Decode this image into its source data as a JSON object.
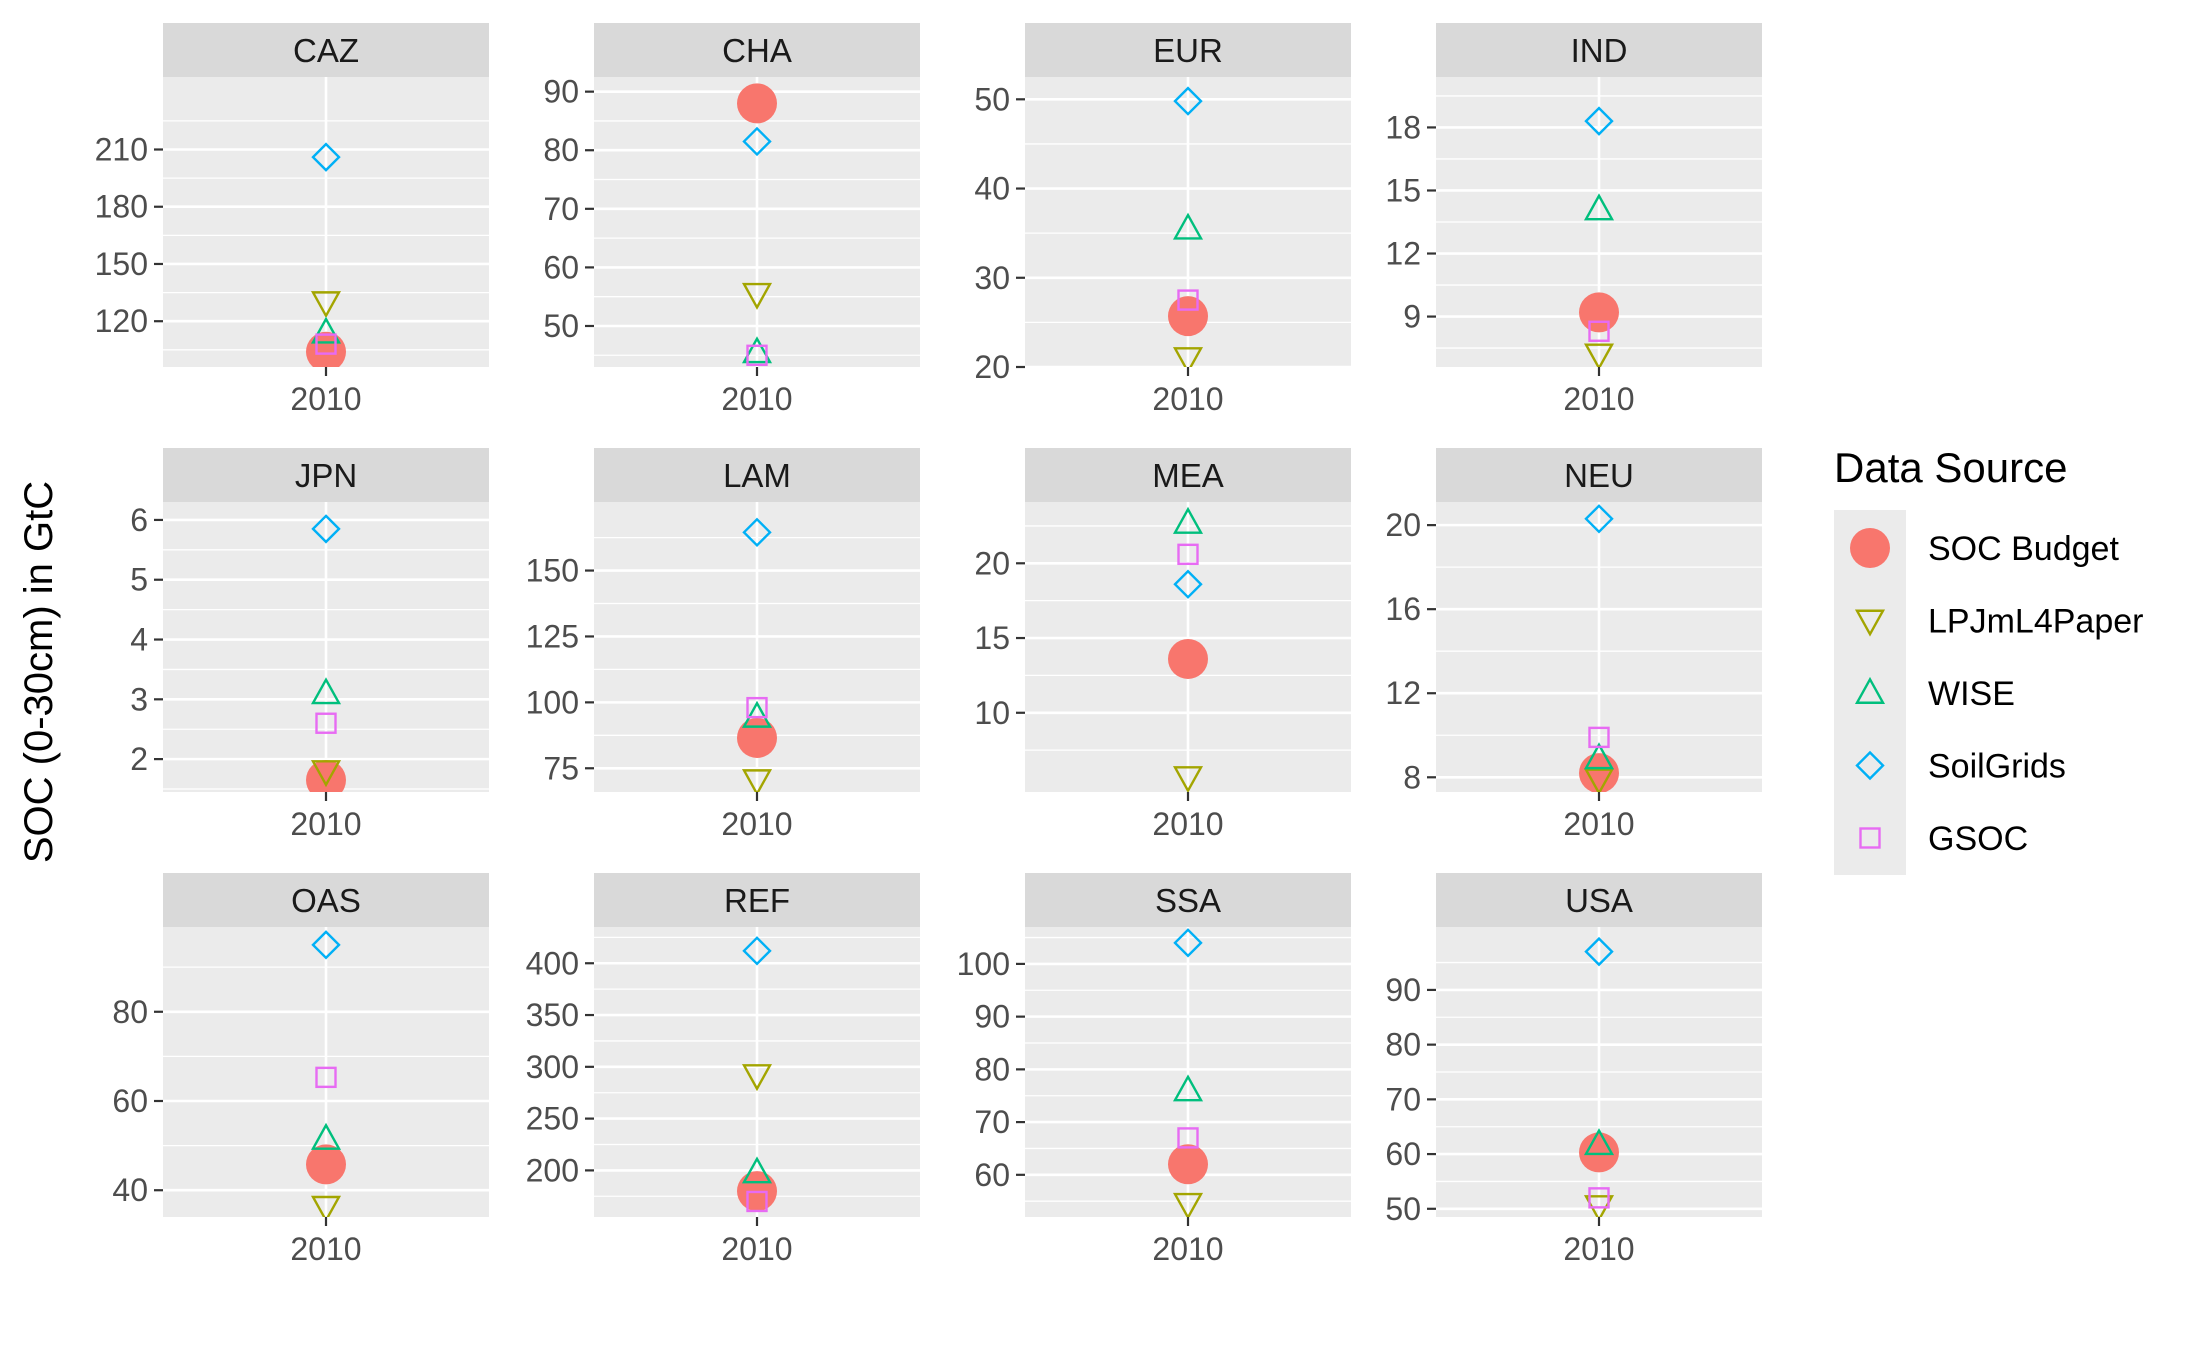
{
  "figure": {
    "ylabel": "SOC (0-30cm) in GtC",
    "legend_title": "Data Source",
    "legend_position": "right"
  },
  "chart_data": {
    "type": "scatter",
    "x_category": "2010",
    "series": [
      {
        "name": "SOC Budget",
        "shape": "filled-circle",
        "color": "#F8766D"
      },
      {
        "name": "LPJmL4Paper",
        "shape": "open-triangle-down",
        "color": "#A3A500"
      },
      {
        "name": "WISE",
        "shape": "open-triangle-up",
        "color": "#00BF7D"
      },
      {
        "name": "SoilGrids",
        "shape": "open-diamond",
        "color": "#00B0F6"
      },
      {
        "name": "GSOC",
        "shape": "open-square",
        "color": "#E76BF3"
      }
    ],
    "panels": [
      {
        "region": "CAZ",
        "ylim": [
          96,
          248
        ],
        "yticks": [
          "120",
          "150",
          "180",
          "210"
        ],
        "values": {
          "SOC Budget": 104,
          "LPJmL4Paper": 130,
          "WISE": 114,
          "SoilGrids": 206,
          "GSOC": 108
        }
      },
      {
        "region": "CHA",
        "ylim": [
          43,
          92.5
        ],
        "yticks": [
          "50",
          "60",
          "70",
          "80",
          "90"
        ],
        "values": {
          "SOC Budget": 88,
          "LPJmL4Paper": 55.5,
          "WISE": 45.5,
          "SoilGrids": 81.5,
          "GSOC": 45
        }
      },
      {
        "region": "EUR",
        "ylim": [
          20,
          52.5
        ],
        "yticks": [
          "20",
          "30",
          "40",
          "50"
        ],
        "values": {
          "SOC Budget": 25.7,
          "LPJmL4Paper": 21,
          "WISE": 35.5,
          "SoilGrids": 49.8,
          "GSOC": 27.5
        }
      },
      {
        "region": "IND",
        "ylim": [
          6.6,
          20.4
        ],
        "yticks": [
          "9",
          "12",
          "15",
          "18"
        ],
        "values": {
          "SOC Budget": 9.2,
          "LPJmL4Paper": 7.2,
          "WISE": 14.1,
          "SoilGrids": 18.3,
          "GSOC": 8.3
        }
      },
      {
        "region": "JPN",
        "ylim": [
          1.45,
          6.3
        ],
        "yticks": [
          "2",
          "3",
          "4",
          "5",
          "6"
        ],
        "values": {
          "SOC Budget": 1.65,
          "LPJmL4Paper": 1.8,
          "WISE": 3.1,
          "SoilGrids": 5.85,
          "GSOC": 2.6
        }
      },
      {
        "region": "LAM",
        "ylim": [
          66,
          176
        ],
        "yticks": [
          "75",
          "100",
          "125",
          "150"
        ],
        "values": {
          "SOC Budget": 86.5,
          "LPJmL4Paper": 70.5,
          "WISE": 94.5,
          "SoilGrids": 164.5,
          "GSOC": 98
        }
      },
      {
        "region": "MEA",
        "ylim": [
          4.7,
          24.1
        ],
        "yticks": [
          "10",
          "15",
          "20"
        ],
        "values": {
          "SOC Budget": 13.6,
          "LPJmL4Paper": 5.7,
          "WISE": 22.7,
          "SoilGrids": 18.6,
          "GSOC": 20.6
        }
      },
      {
        "region": "NEU",
        "ylim": [
          7.3,
          21.1
        ],
        "yticks": [
          "8",
          "12",
          "16",
          "20"
        ],
        "values": {
          "SOC Budget": 8.2,
          "LPJmL4Paper": 7.9,
          "WISE": 8.9,
          "SoilGrids": 20.3,
          "GSOC": 9.9
        }
      },
      {
        "region": "OAS",
        "ylim": [
          34,
          99
        ],
        "yticks": [
          "40",
          "60",
          "80"
        ],
        "values": {
          "SOC Budget": 45.8,
          "LPJmL4Paper": 36.3,
          "WISE": 51.5,
          "SoilGrids": 95,
          "GSOC": 65.3
        }
      },
      {
        "region": "REF",
        "ylim": [
          155,
          435
        ],
        "yticks": [
          "200",
          "250",
          "300",
          "350",
          "400"
        ],
        "values": {
          "SOC Budget": 180,
          "LPJmL4Paper": 292,
          "WISE": 198,
          "SoilGrids": 412,
          "GSOC": 170
        }
      },
      {
        "region": "SSA",
        "ylim": [
          52,
          107
        ],
        "yticks": [
          "60",
          "70",
          "80",
          "90",
          "100"
        ],
        "values": {
          "SOC Budget": 62,
          "LPJmL4Paper": 54.5,
          "WISE": 76,
          "SoilGrids": 104,
          "GSOC": 67
        }
      },
      {
        "region": "USA",
        "ylim": [
          48.5,
          101.5
        ],
        "yticks": [
          "50",
          "60",
          "70",
          "80",
          "90"
        ],
        "values": {
          "SOC Budget": 60.3,
          "LPJmL4Paper": 50.5,
          "WISE": 61.8,
          "SoilGrids": 97,
          "GSOC": 52
        }
      }
    ]
  }
}
